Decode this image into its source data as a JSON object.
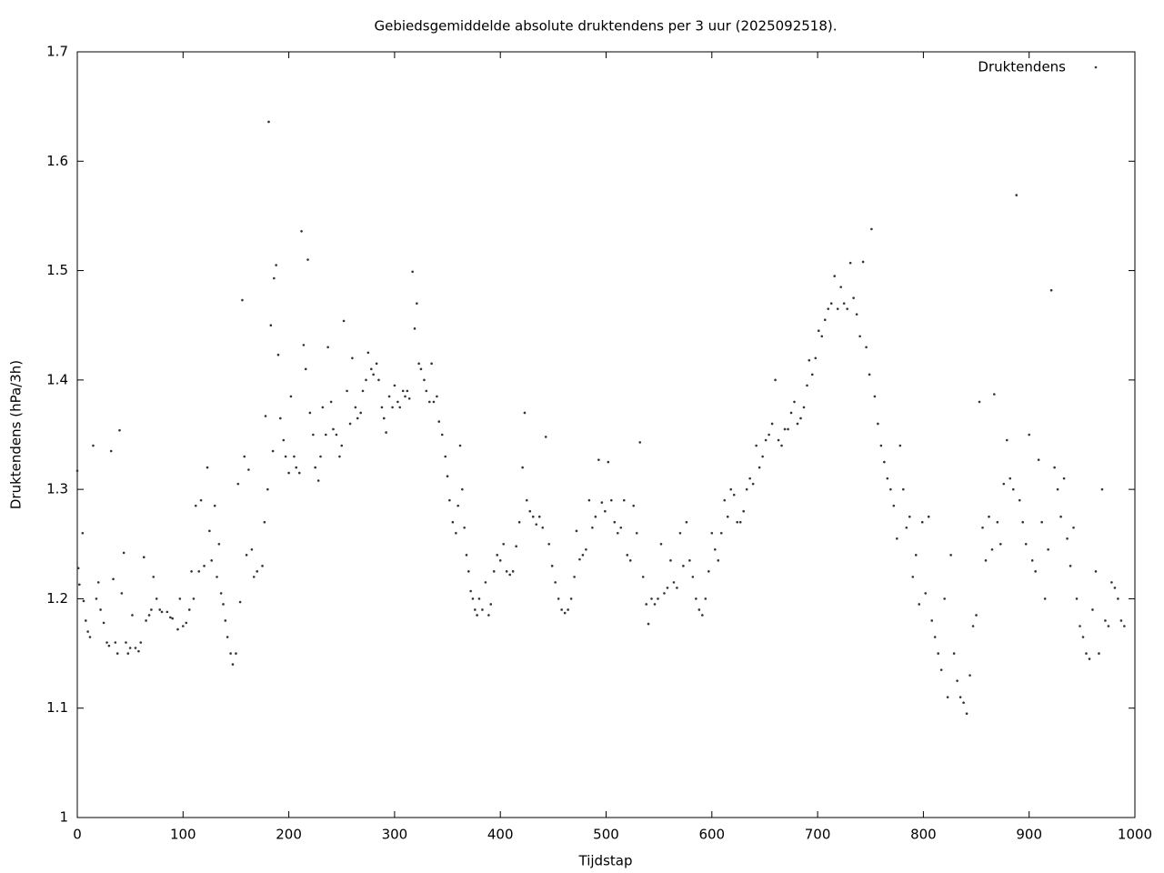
{
  "chart_data": {
    "type": "scatter",
    "title": "Gebiedsgemiddelde absolute druktendens per 3 uur (2025092518).",
    "x_label": "Tijdstap",
    "y_label": "Druktendens (hPa/3h)",
    "xlim": [
      0,
      1000
    ],
    "xticks": [
      0,
      100,
      200,
      300,
      400,
      500,
      600,
      700,
      800,
      900,
      1000
    ],
    "ylim": [
      1,
      1.7
    ],
    "yticks": [
      1,
      1.1,
      1.2,
      1.3,
      1.4,
      1.5,
      1.6,
      1.7
    ],
    "legend": "top-right",
    "x": [
      0,
      1,
      2,
      5,
      6,
      8,
      10,
      12,
      15,
      18,
      20,
      22,
      25,
      28,
      30,
      32,
      34,
      36,
      38,
      40,
      42,
      44,
      46,
      48,
      50,
      52,
      55,
      58,
      60,
      63,
      65,
      68,
      70,
      72,
      75,
      78,
      80,
      85,
      88,
      90,
      95,
      97,
      100,
      103,
      106,
      108,
      110,
      112,
      115,
      117,
      120,
      123,
      125,
      127,
      130,
      132,
      134,
      136,
      138,
      140,
      142,
      145,
      147,
      150,
      152,
      154,
      156,
      158,
      160,
      162,
      165,
      167,
      170,
      175,
      177,
      178,
      180,
      181,
      183,
      185,
      186,
      188,
      190,
      192,
      195,
      197,
      200,
      202,
      205,
      207,
      210,
      212,
      214,
      216,
      218,
      220,
      223,
      225,
      228,
      230,
      232,
      235,
      237,
      240,
      242,
      245,
      248,
      250,
      252,
      255,
      258,
      260,
      263,
      265,
      268,
      270,
      273,
      275,
      278,
      280,
      283,
      285,
      288,
      290,
      292,
      295,
      298,
      300,
      303,
      305,
      308,
      310,
      312,
      314,
      317,
      319,
      321,
      323,
      325,
      328,
      330,
      333,
      335,
      337,
      340,
      342,
      345,
      348,
      350,
      352,
      355,
      358,
      360,
      362,
      364,
      366,
      368,
      370,
      372,
      374,
      376,
      378,
      380,
      383,
      386,
      389,
      391,
      394,
      397,
      400,
      403,
      406,
      409,
      412,
      415,
      418,
      421,
      423,
      425,
      428,
      431,
      434,
      437,
      440,
      443,
      446,
      449,
      452,
      455,
      458,
      461,
      464,
      467,
      470,
      472,
      475,
      478,
      481,
      484,
      487,
      490,
      493,
      496,
      499,
      502,
      505,
      508,
      511,
      514,
      517,
      520,
      523,
      526,
      529,
      532,
      535,
      538,
      540,
      543,
      546,
      549,
      552,
      555,
      558,
      561,
      564,
      567,
      570,
      573,
      576,
      579,
      582,
      585,
      588,
      591,
      594,
      597,
      600,
      603,
      606,
      609,
      612,
      615,
      618,
      621,
      624,
      627,
      630,
      633,
      636,
      639,
      642,
      645,
      648,
      651,
      654,
      657,
      660,
      663,
      666,
      669,
      672,
      675,
      678,
      681,
      684,
      687,
      690,
      692,
      695,
      698,
      701,
      704,
      707,
      710,
      713,
      716,
      719,
      722,
      725,
      728,
      731,
      734,
      737,
      740,
      743,
      746,
      749,
      751,
      754,
      757,
      760,
      763,
      766,
      769,
      772,
      775,
      778,
      781,
      784,
      787,
      790,
      793,
      796,
      799,
      802,
      805,
      808,
      811,
      814,
      817,
      820,
      823,
      826,
      829,
      832,
      835,
      838,
      841,
      844,
      847,
      850,
      853,
      856,
      859,
      862,
      865,
      867,
      870,
      873,
      876,
      879,
      882,
      885,
      888,
      891,
      894,
      897,
      900,
      903,
      906,
      909,
      912,
      915,
      918,
      921,
      924,
      927,
      930,
      933,
      936,
      939,
      942,
      945,
      948,
      951,
      954,
      957,
      960,
      963,
      966,
      969,
      972,
      975,
      978,
      981,
      984,
      987,
      990
    ],
    "series": [
      {
        "name": "Druktendens",
        "color": "#333333",
        "values": [
          1.317,
          1.228,
          1.213,
          1.26,
          1.198,
          1.18,
          1.17,
          1.165,
          1.34,
          1.2,
          1.215,
          1.19,
          1.178,
          1.16,
          1.157,
          1.335,
          1.218,
          1.16,
          1.15,
          1.354,
          1.205,
          1.242,
          1.16,
          1.15,
          1.155,
          1.185,
          1.155,
          1.152,
          1.16,
          1.238,
          1.18,
          1.185,
          1.19,
          1.22,
          1.2,
          1.19,
          1.188,
          1.188,
          1.183,
          1.182,
          1.172,
          1.2,
          1.175,
          1.178,
          1.19,
          1.225,
          1.2,
          1.285,
          1.225,
          1.29,
          1.23,
          1.32,
          1.262,
          1.235,
          1.285,
          1.22,
          1.25,
          1.205,
          1.195,
          1.18,
          1.165,
          1.15,
          1.14,
          1.15,
          1.305,
          1.197,
          1.473,
          1.33,
          1.24,
          1.318,
          1.245,
          1.22,
          1.225,
          1.23,
          1.27,
          1.367,
          1.3,
          1.636,
          1.45,
          1.335,
          1.493,
          1.505,
          1.423,
          1.365,
          1.345,
          1.33,
          1.315,
          1.385,
          1.33,
          1.32,
          1.315,
          1.536,
          1.432,
          1.41,
          1.51,
          1.37,
          1.35,
          1.32,
          1.308,
          1.33,
          1.375,
          1.35,
          1.43,
          1.38,
          1.355,
          1.35,
          1.33,
          1.34,
          1.454,
          1.39,
          1.36,
          1.42,
          1.375,
          1.365,
          1.37,
          1.39,
          1.4,
          1.425,
          1.41,
          1.405,
          1.415,
          1.4,
          1.375,
          1.365,
          1.352,
          1.385,
          1.375,
          1.395,
          1.38,
          1.375,
          1.39,
          1.385,
          1.39,
          1.383,
          1.499,
          1.447,
          1.47,
          1.415,
          1.41,
          1.4,
          1.39,
          1.38,
          1.415,
          1.38,
          1.385,
          1.362,
          1.35,
          1.33,
          1.312,
          1.29,
          1.27,
          1.26,
          1.285,
          1.34,
          1.3,
          1.265,
          1.24,
          1.225,
          1.207,
          1.2,
          1.19,
          1.185,
          1.2,
          1.19,
          1.215,
          1.185,
          1.195,
          1.225,
          1.24,
          1.235,
          1.25,
          1.225,
          1.222,
          1.225,
          1.248,
          1.27,
          1.32,
          1.37,
          1.29,
          1.28,
          1.275,
          1.268,
          1.275,
          1.265,
          1.348,
          1.25,
          1.23,
          1.215,
          1.2,
          1.19,
          1.187,
          1.19,
          1.2,
          1.22,
          1.262,
          1.236,
          1.24,
          1.245,
          1.29,
          1.265,
          1.275,
          1.327,
          1.288,
          1.28,
          1.325,
          1.29,
          1.27,
          1.26,
          1.265,
          1.29,
          1.24,
          1.235,
          1.285,
          1.26,
          1.343,
          1.22,
          1.195,
          1.177,
          1.2,
          1.195,
          1.2,
          1.25,
          1.205,
          1.21,
          1.235,
          1.215,
          1.21,
          1.26,
          1.23,
          1.27,
          1.235,
          1.22,
          1.2,
          1.19,
          1.185,
          1.2,
          1.225,
          1.26,
          1.245,
          1.235,
          1.26,
          1.29,
          1.275,
          1.3,
          1.295,
          1.27,
          1.27,
          1.28,
          1.3,
          1.31,
          1.305,
          1.34,
          1.32,
          1.33,
          1.345,
          1.35,
          1.36,
          1.4,
          1.345,
          1.34,
          1.355,
          1.355,
          1.37,
          1.38,
          1.36,
          1.365,
          1.375,
          1.395,
          1.418,
          1.405,
          1.42,
          1.445,
          1.44,
          1.455,
          1.465,
          1.47,
          1.495,
          1.465,
          1.485,
          1.47,
          1.465,
          1.507,
          1.475,
          1.46,
          1.44,
          1.508,
          1.43,
          1.405,
          1.538,
          1.385,
          1.36,
          1.34,
          1.325,
          1.31,
          1.3,
          1.285,
          1.255,
          1.34,
          1.3,
          1.265,
          1.275,
          1.22,
          1.24,
          1.195,
          1.27,
          1.205,
          1.275,
          1.18,
          1.165,
          1.15,
          1.135,
          1.2,
          1.11,
          1.24,
          1.15,
          1.125,
          1.11,
          1.105,
          1.095,
          1.13,
          1.175,
          1.185,
          1.38,
          1.265,
          1.235,
          1.275,
          1.245,
          1.387,
          1.27,
          1.25,
          1.305,
          1.345,
          1.31,
          1.3,
          1.569,
          1.29,
          1.27,
          1.25,
          1.35,
          1.235,
          1.225,
          1.327,
          1.27,
          1.2,
          1.245,
          1.482,
          1.32,
          1.3,
          1.275,
          1.31,
          1.255,
          1.23,
          1.265,
          1.2,
          1.175,
          1.165,
          1.15,
          1.145,
          1.19,
          1.225,
          1.15,
          1.3,
          1.18,
          1.175,
          1.215,
          1.21,
          1.2,
          1.18,
          1.175
        ]
      }
    ]
  }
}
